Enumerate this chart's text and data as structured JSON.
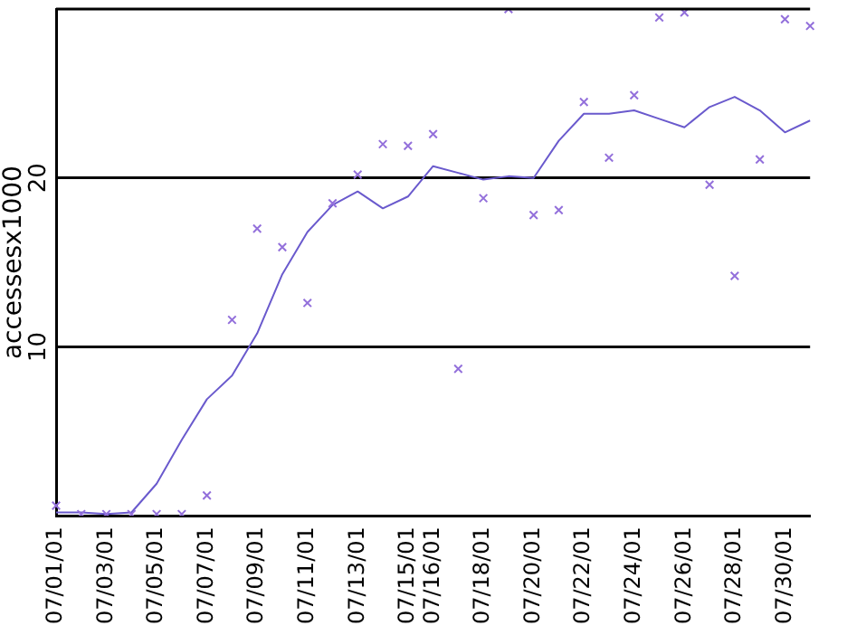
{
  "chart_data": {
    "type": "line",
    "ylabel": "accessesx1000",
    "categories": [
      "07/01/01",
      null,
      "07/03/01",
      null,
      "07/05/01",
      null,
      "07/07/01",
      null,
      "07/09/01",
      null,
      "07/11/01",
      null,
      "07/13/01",
      null,
      "07/15/01",
      "07/16/01",
      null,
      "07/18/01",
      null,
      "07/20/01",
      null,
      "07/22/01",
      null,
      "07/24/01",
      null,
      "07/26/01",
      null,
      "07/28/01",
      null,
      "07/30/01",
      null
    ],
    "series": [
      {
        "type": "scatter",
        "color": "#9370db",
        "marker": "cross",
        "values": [
          0.6,
          0.1,
          0.1,
          0.1,
          0.1,
          0.1,
          1.2,
          11.6,
          17.0,
          15.9,
          12.6,
          18.5,
          20.2,
          22.0,
          21.9,
          22.6,
          8.7,
          18.8,
          30.0,
          17.8,
          18.1,
          24.5,
          21.2,
          24.9,
          29.5,
          29.8,
          19.6,
          14.2,
          21.1,
          29.4,
          29.0
        ]
      },
      {
        "color": "#6a5acd",
        "marker": "none",
        "values": [
          0.2,
          0.2,
          0.1,
          0.2,
          1.9,
          4.5,
          6.9,
          8.3,
          10.8,
          14.3,
          16.8,
          18.4,
          19.2,
          18.2,
          18.9,
          20.7,
          20.3,
          19.9,
          20.1,
          20.0,
          22.2,
          23.8,
          23.8,
          24.0,
          23.5,
          23.0,
          24.2,
          24.8,
          24.0,
          22.7,
          23.4
        ]
      }
    ],
    "ylim": [
      0,
      30
    ],
    "yticks": [
      10,
      20
    ],
    "grid": "y",
    "legend": false
  }
}
